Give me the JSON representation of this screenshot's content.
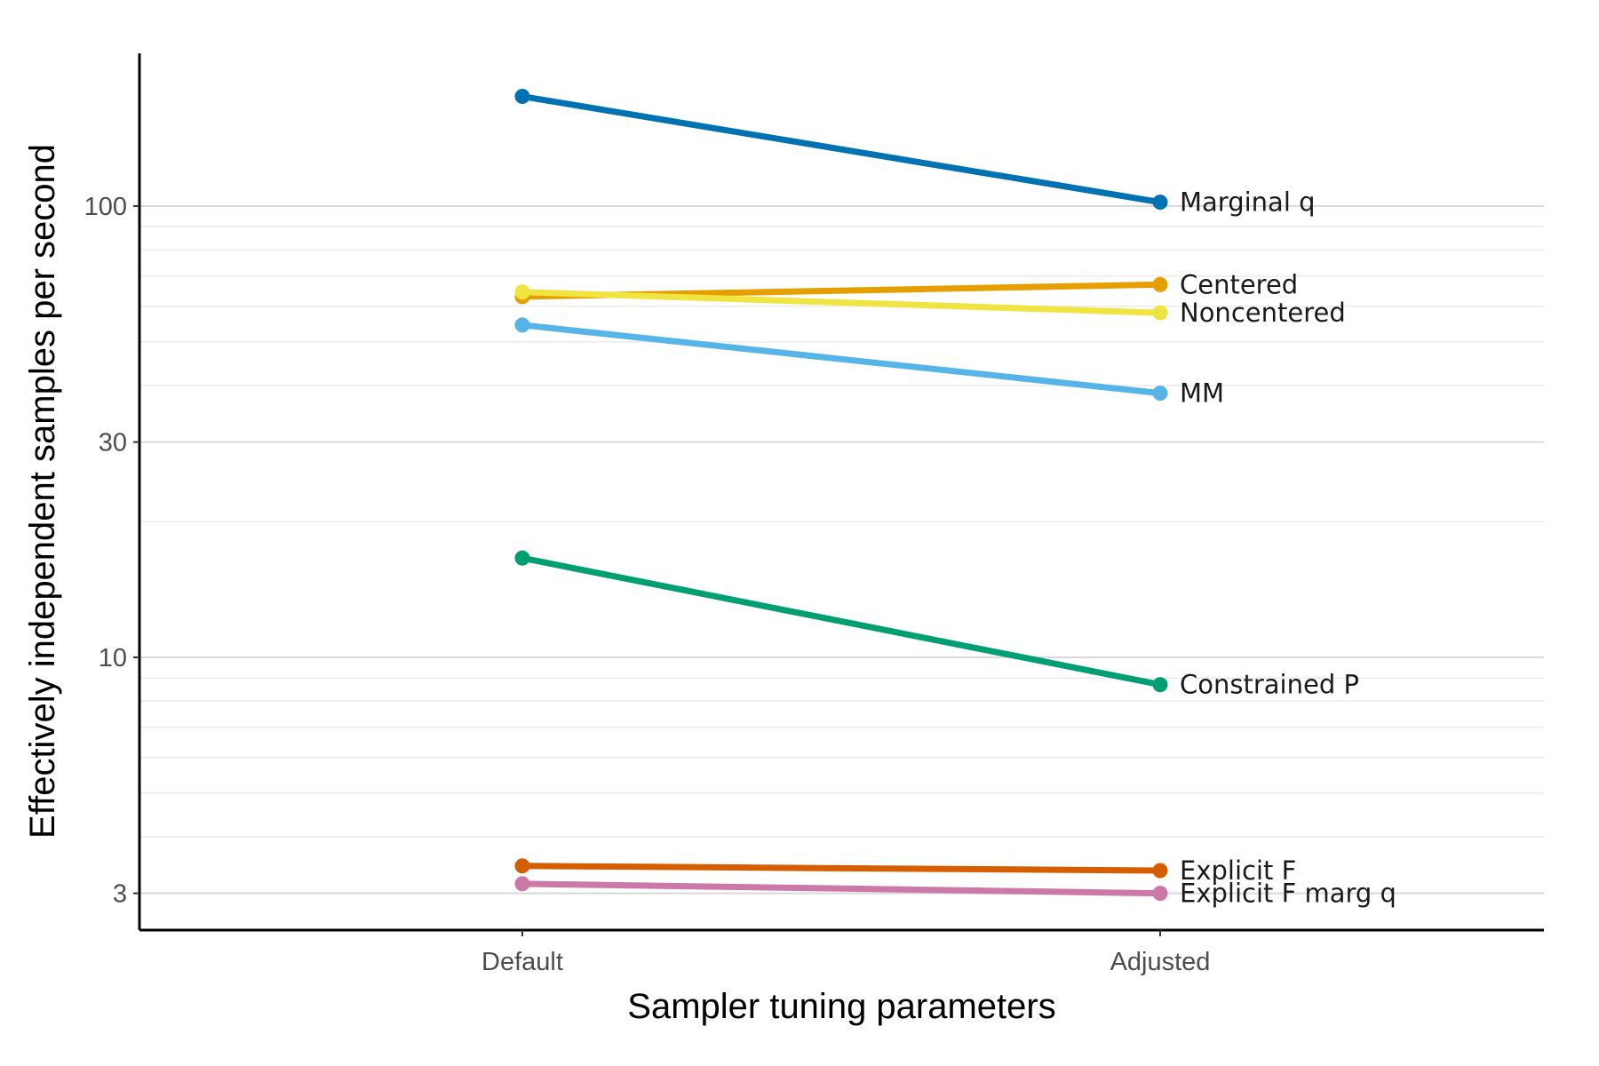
{
  "chart_data": {
    "type": "line",
    "title": "",
    "xlabel": "Sampler tuning parameters",
    "ylabel": "Effectively independent samples per second",
    "categories": [
      "Default",
      "Adjusted"
    ],
    "y_scale": "log",
    "ylim": [
      2.6,
      200
    ],
    "y_major_ticks": [
      3,
      10,
      30,
      100
    ],
    "y_major_tick_labels": [
      "3",
      "10",
      "30",
      "100"
    ],
    "y_minor_ticks": [
      4,
      5,
      6,
      7,
      8,
      9,
      20,
      40,
      50,
      60,
      70,
      80,
      90
    ],
    "grid": "horizontal",
    "legend": "direct labels at right end of each line",
    "series": [
      {
        "name": "Marginal q",
        "values": [
          175,
          102
        ],
        "color": "#0072B2"
      },
      {
        "name": "Centered",
        "values": [
          63,
          67
        ],
        "color": "#E69F00"
      },
      {
        "name": "Noncentered",
        "values": [
          64.5,
          58
        ],
        "color": "#F0E442"
      },
      {
        "name": "MM",
        "values": [
          54.5,
          38.5
        ],
        "color": "#56B4E9"
      },
      {
        "name": "Constrained P",
        "values": [
          16.6,
          8.7
        ],
        "color": "#009E73"
      },
      {
        "name": "Explicit F",
        "values": [
          3.45,
          3.37
        ],
        "color": "#D55E00"
      },
      {
        "name": "Explicit F marg q",
        "values": [
          3.15,
          3.0
        ],
        "color": "#CC79A7"
      }
    ]
  }
}
